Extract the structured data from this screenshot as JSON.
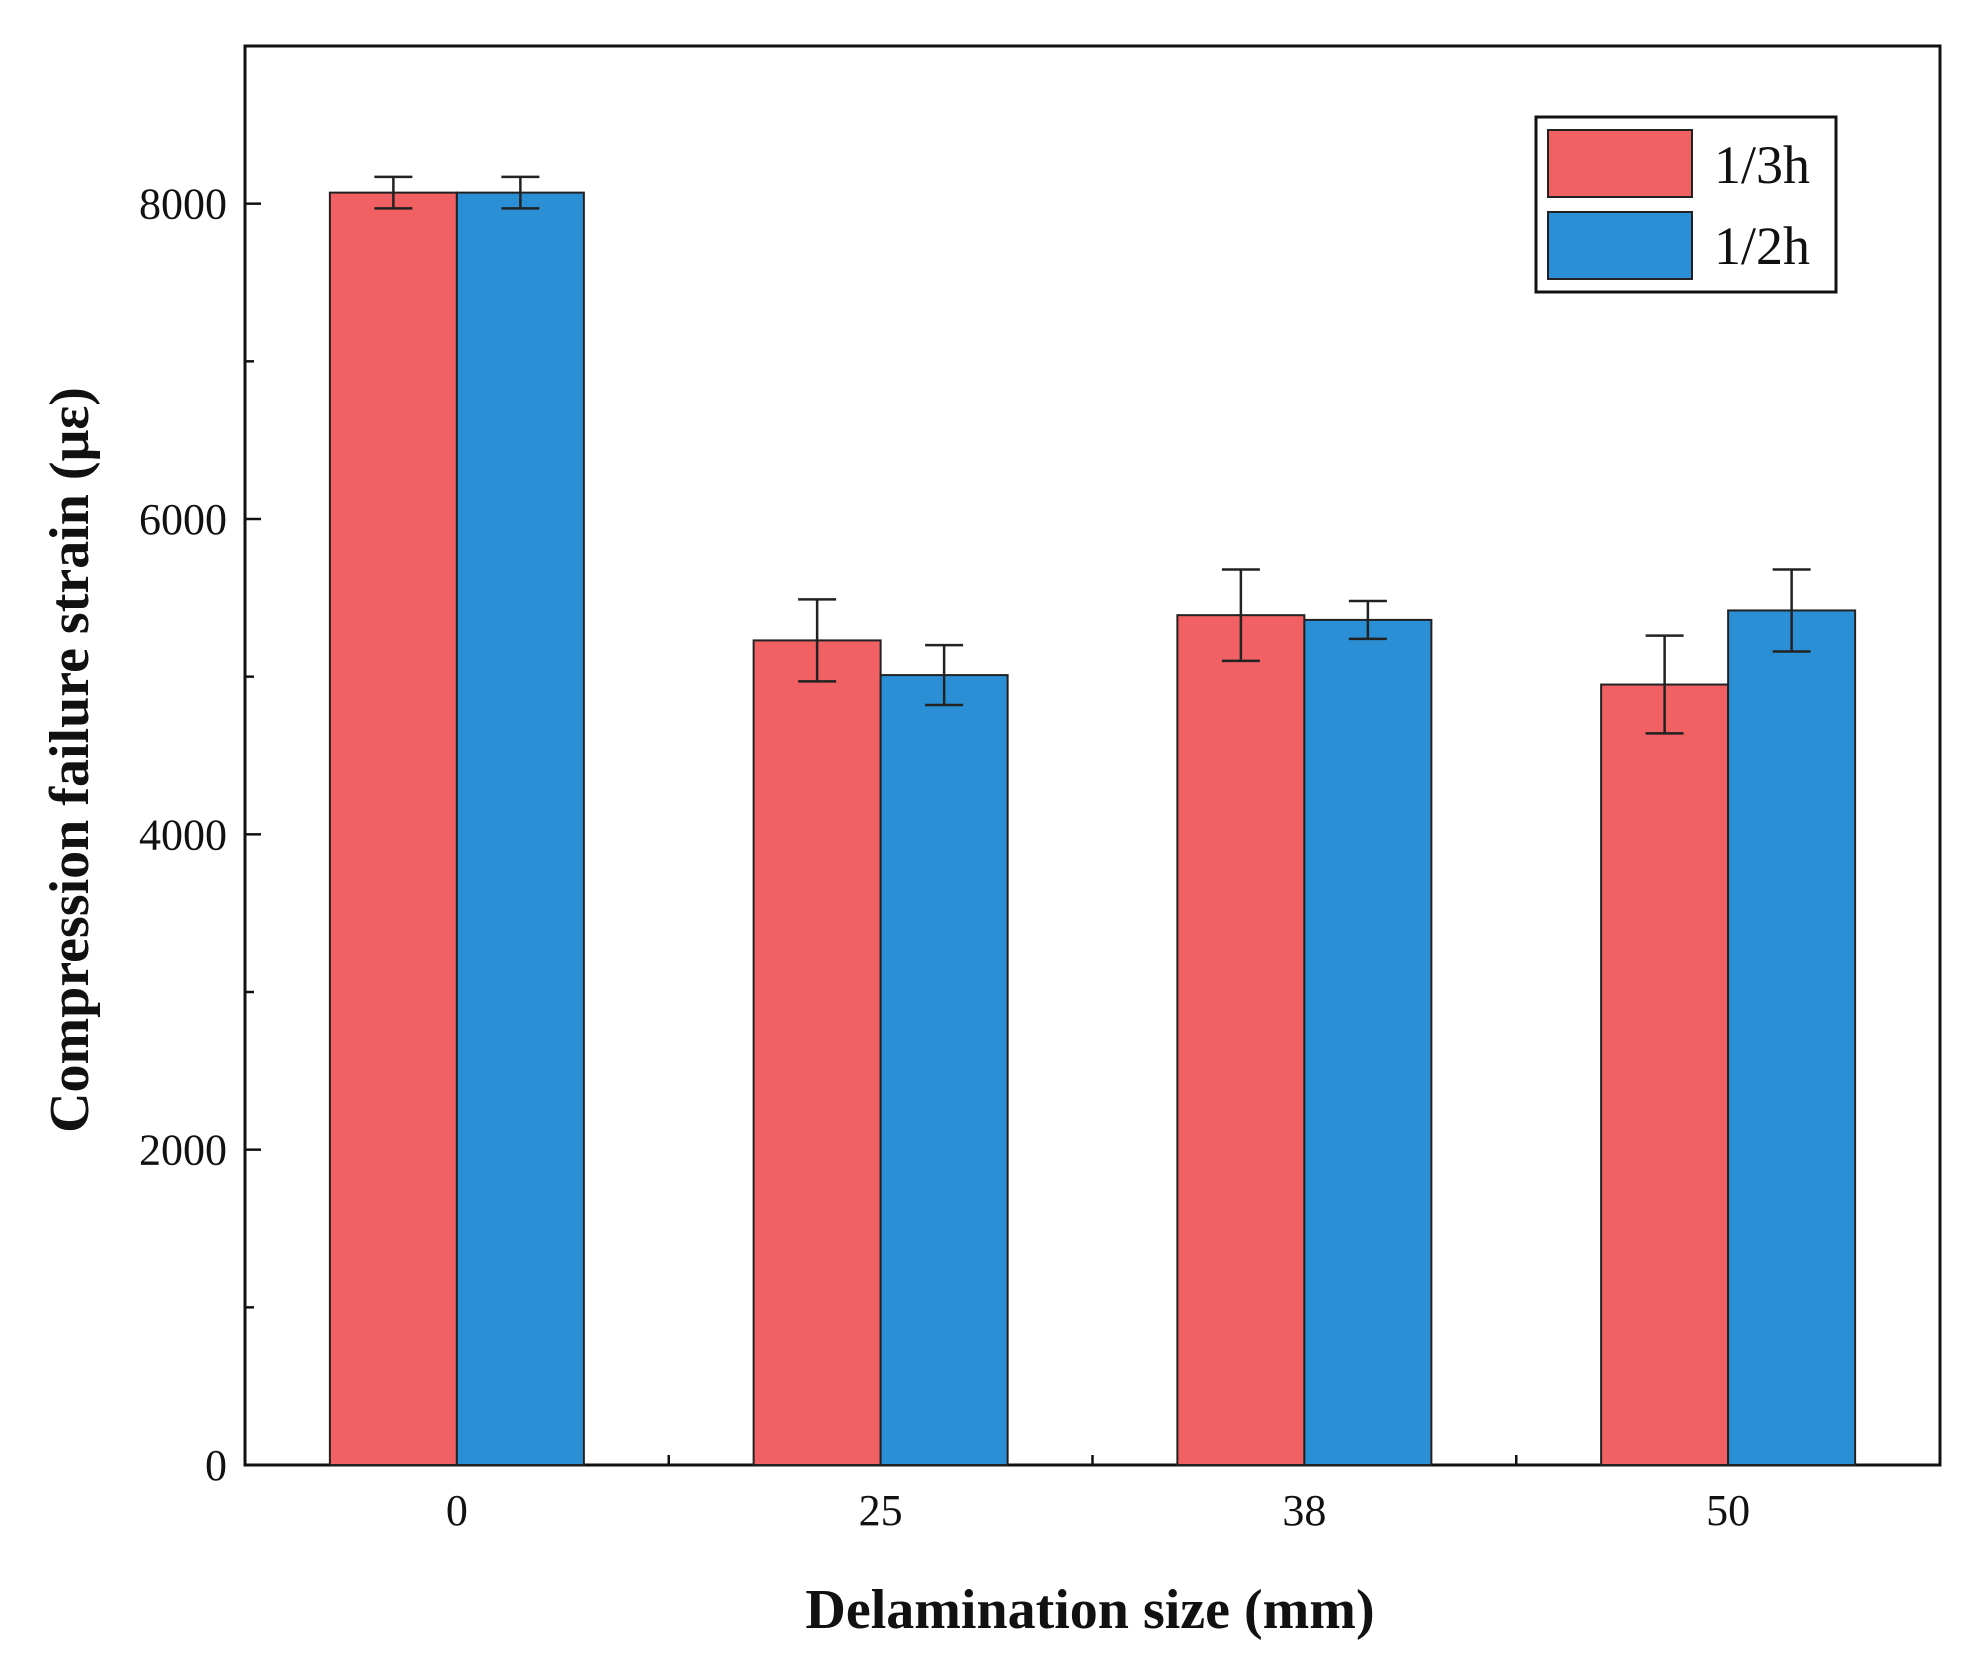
{
  "chart_data": {
    "type": "bar",
    "title": "",
    "xlabel": "Delamination size (mm)",
    "ylabel": "Compression failure strain (με)",
    "categories": [
      "0",
      "25",
      "38",
      "50"
    ],
    "ylim": [
      0,
      9000
    ],
    "yticks": [
      0,
      2000,
      4000,
      6000,
      8000
    ],
    "ytick_labels": [
      "0",
      "2000",
      "4000",
      "6000",
      "8000"
    ],
    "grid": false,
    "legend_position": "top-right",
    "series": [
      {
        "name": "1/3h",
        "color": "#f16163",
        "values": [
          8070,
          5230,
          5390,
          4950
        ],
        "errors": [
          100,
          260,
          290,
          310
        ]
      },
      {
        "name": "1/2h",
        "color": "#2b8fd6",
        "values": [
          8070,
          5010,
          5360,
          5420
        ],
        "errors": [
          100,
          190,
          120,
          260
        ]
      }
    ]
  }
}
